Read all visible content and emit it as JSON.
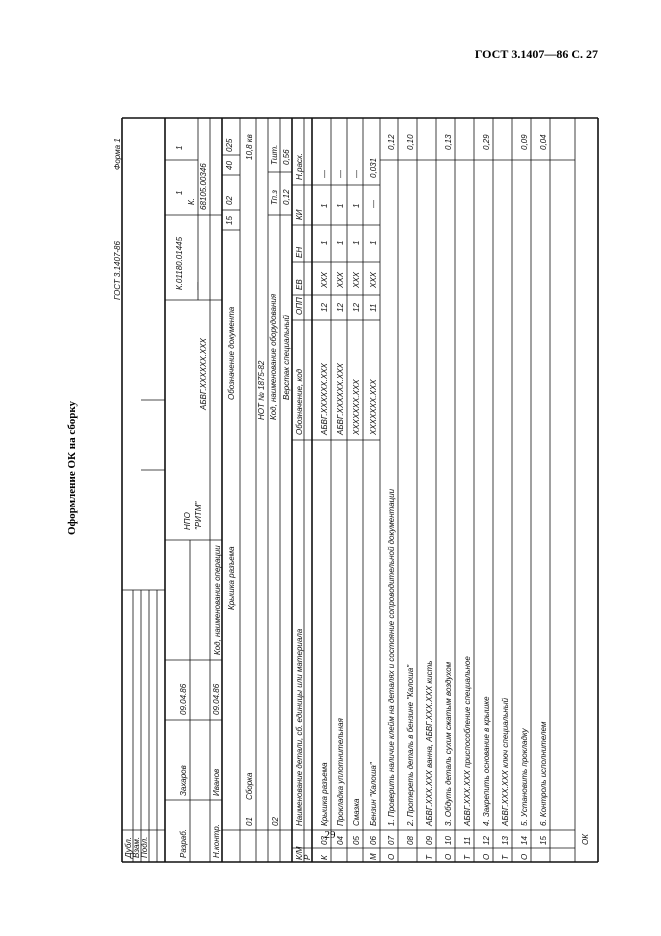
{
  "header": {
    "title": "ГОСТ 3.1407—86 С. 27"
  },
  "side_title": "Оформление ОК на сборку",
  "page_number": "29",
  "form": {
    "standard": "ГОСТ 3.1407-86",
    "form_name": "Форма 1",
    "stamps": [
      "Дубл.",
      "Взам.",
      "Подл."
    ],
    "signatures": [
      [
        "Разраб.",
        "Захаров",
        "09.04.86"
      ],
      [
        "Н.контр.",
        "Иванов",
        "09.04.86"
      ]
    ],
    "organization": [
      "НПО",
      "\"РИТМ\""
    ],
    "document_code": "АБВГ.ХХХХХХ.ХХХ",
    "code_left": "К.01180.01445",
    "dash": "—",
    "code_right": [
      "К.",
      "68105.00346"
    ],
    "sheets": [
      "1",
      "1"
    ],
    "operation_header": "Код, наименование операции",
    "part_name": "Крышка разъема",
    "document_header": "Обозначение документа",
    "operation_values": [
      "15",
      "02",
      "40",
      "025"
    ],
    "operation": {
      "number": "01",
      "name": "Сборка",
      "document": "НОТ № 1875-82",
      "norm": "10,8 кв"
    },
    "equipment_header": "Код, наименование оборудования",
    "equipment": {
      "number": "02",
      "name": "Верстак специальный",
      "labels": [
        "Тп.з",
        "Тшт."
      ],
      "values": [
        "0,12",
        "0,56"
      ]
    },
    "table_header": {
      "code": "К/М",
      "name": "Наименование детали, сб. единицы или материала",
      "designation": "Обозначение, код",
      "columns": [
        "ОПП",
        "ЕВ",
        "ЕН",
        "КИ",
        "Н.расх."
      ],
      "row_mark": "Р"
    },
    "rows": [
      {
        "code": "К",
        "number": "03",
        "text": "Крышка разъема",
        "designation": "АБВГ.ХХХХХХ.ХХХ",
        "values": [
          "12",
          "ХХХ",
          "1",
          "1",
          "—"
        ]
      },
      {
        "number": "04",
        "text": "Прокладка уплотнительная",
        "designation": "АБВГ.ХХХХХХ.ХХХ",
        "values": [
          "12",
          "ХХХ",
          "1",
          "1",
          "—"
        ]
      },
      {
        "number": "05",
        "text": "Смазка",
        "designation": "ХХХХХХХ.ХХХ",
        "values": [
          "12",
          "ХХХ",
          "1",
          "1",
          "—"
        ]
      },
      {
        "code": "М",
        "number": "06",
        "text": "Бензин \"Калоша\"",
        "designation": "ХХХХХХХ.ХХХ",
        "values": [
          "11",
          "ХХХ",
          "1",
          "—",
          "0,031"
        ]
      },
      {
        "code": "О",
        "number": "07",
        "text": "1. Проверить наличие клейм на деталях и состояние сопроводительной документации",
        "time": "0,12"
      },
      {
        "number": "08",
        "text": "2. Протереть деталь в бензине \"Калоша\"",
        "time": "0,10"
      },
      {
        "code": "Т",
        "number": "09",
        "text": "АБВГ.ХХХ.ХХХ ванна, АБВГ.ХХХ.ХХХ кисть"
      },
      {
        "code": "О",
        "number": "10",
        "text": "3. Обдуть деталь сухим сжатым воздухом",
        "time": "0,13"
      },
      {
        "code": "Т",
        "number": "11",
        "text": "АБВГ.ХХХ.ХХХ приспособление специальное"
      },
      {
        "code": "О",
        "number": "12",
        "text": "4. Закрепить основание в крышке",
        "time": "0,29"
      },
      {
        "code": "Т",
        "number": "13",
        "text": "АБВГ.ХХХ.ХХХ ключ специальный"
      },
      {
        "code": "О",
        "number": "14",
        "text": "5. Установить прокладку",
        "time": "0,09"
      },
      {
        "number": "15",
        "text": "6. Контроль исполнителем",
        "time": "0,04"
      }
    ],
    "footer": "ОК"
  }
}
